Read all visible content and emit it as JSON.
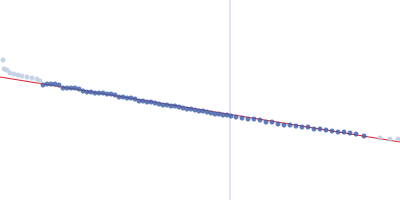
{
  "chart_data": {
    "type": "scatter",
    "xlim": [
      0,
      400
    ],
    "ylim": [
      0,
      200
    ],
    "tick_labels": false,
    "grid": false,
    "series": [
      {
        "type": "scatter",
        "color": "#b9c9e2",
        "marker": "circle",
        "x": [
          3,
          4,
          7,
          10,
          14,
          18,
          22,
          27,
          32,
          37,
          40,
          380,
          390,
          398
        ],
        "values": [
          140,
          131,
          130,
          127,
          126,
          125,
          124,
          123,
          122,
          121,
          119,
          62,
          61,
          61
        ]
      },
      {
        "type": "scatter",
        "color": "#3a5ca8",
        "marker": "circle",
        "x": [
          43,
          47,
          51,
          55,
          59,
          63,
          67,
          71,
          75,
          79,
          83,
          87,
          91,
          95,
          99,
          103,
          107,
          111,
          115,
          119,
          123,
          127,
          131,
          135,
          139,
          143,
          147,
          151,
          155,
          159,
          163,
          167,
          171,
          175,
          179,
          183,
          187,
          191,
          195,
          199,
          203,
          207,
          211,
          215,
          219,
          223,
          227,
          231,
          236,
          242,
          248,
          254,
          260,
          266,
          272,
          278,
          284,
          290,
          296,
          302,
          308,
          314,
          320,
          326,
          332,
          338,
          344,
          350,
          356,
          364
        ],
        "values": [
          115,
          116,
          116,
          116,
          115,
          112,
          112,
          112,
          112,
          111,
          109,
          108,
          108,
          107,
          107,
          107,
          106,
          106,
          105,
          103,
          103,
          102,
          102,
          101,
          99,
          99,
          98,
          98,
          97,
          96,
          95,
          95,
          94,
          94,
          93,
          92,
          91,
          91,
          90,
          89,
          89,
          88,
          87,
          86,
          86,
          85,
          85,
          84,
          83,
          82,
          81,
          81,
          80,
          78,
          78,
          76,
          75,
          75,
          74,
          73,
          73,
          71,
          71,
          70,
          69,
          68,
          68,
          67,
          66,
          64
        ]
      },
      {
        "type": "line",
        "color": "#e0202a",
        "line_style": "solid",
        "x": [
          0,
          400
        ],
        "values": [
          123,
          58
        ]
      },
      {
        "type": "line",
        "color": "#c9d2e4",
        "line_style": "solid",
        "x": [
          230,
          230
        ],
        "values": [
          0,
          200
        ]
      }
    ]
  }
}
